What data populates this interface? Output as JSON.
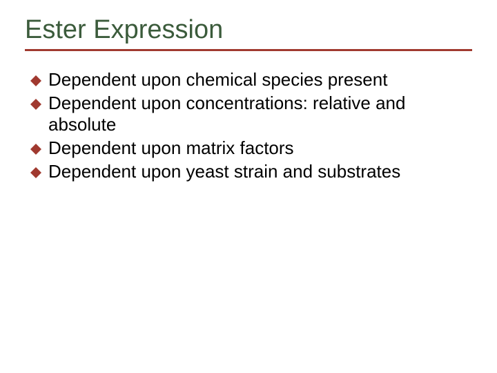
{
  "slide": {
    "title": "Ester Expression",
    "title_color": "#3b5b3b",
    "title_fontsize": 38,
    "rule_color": "#a0392f",
    "rule_thickness": 3,
    "bullet_marker_color": "#a0392f",
    "bullet_fontsize": 26,
    "bullets": [
      "Dependent upon chemical species present",
      "Dependent upon concentrations: relative and absolute",
      "Dependent upon matrix factors",
      "Dependent upon yeast strain and substrates"
    ],
    "background_color": "#ffffff"
  }
}
